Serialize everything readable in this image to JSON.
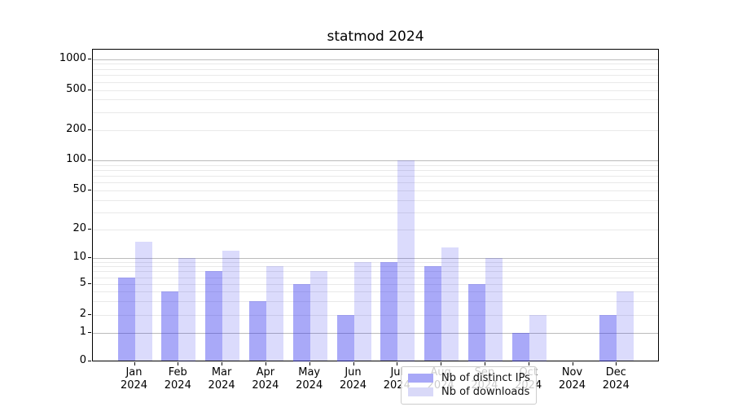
{
  "title": "statmod 2024",
  "chart_data": {
    "type": "bar",
    "title": "statmod 2024",
    "x_categories": [
      "Jan 2024",
      "Feb 2024",
      "Mar 2024",
      "Apr 2024",
      "May 2024",
      "Jun 2024",
      "Jul 2024",
      "Aug 2024",
      "Sep 2024",
      "Oct 2024",
      "Nov 2024",
      "Dec 2024"
    ],
    "series": [
      {
        "name": "Nb of distinct IPs",
        "color": "rgba(40,40,238,0.40)",
        "flat_color": "#a8a8f7",
        "values": [
          6,
          4,
          7,
          3,
          5,
          2,
          9,
          8,
          5,
          1,
          0,
          2
        ]
      },
      {
        "name": "Nb of downloads",
        "color": "rgba(40,40,238,0.17)",
        "flat_color": "#d9d9f8",
        "values": [
          15,
          10,
          12,
          8,
          7,
          9,
          100,
          13,
          10,
          2,
          0,
          4
        ]
      }
    ],
    "yscale": "log-like with linear 0-1 segment",
    "y_tick_values": [
      0,
      1,
      2,
      5,
      10,
      20,
      50,
      100,
      200,
      500,
      1000
    ],
    "y_tick_labels": [
      "0",
      "1",
      "2",
      "5",
      "10",
      "20",
      "50",
      "100",
      "200",
      "500",
      "1000"
    ],
    "ylim": [
      0,
      1000
    ],
    "xlabel": "",
    "ylabel": "",
    "grid": "horizontal, major at powers of 10, faint minors",
    "legend_position": "lower center"
  },
  "colors": {
    "grid_major": "#bbbbbb",
    "grid_minor": "#e9e9e9",
    "spine": "#000000",
    "text": "#000000",
    "legend_border": "#cccccc"
  }
}
